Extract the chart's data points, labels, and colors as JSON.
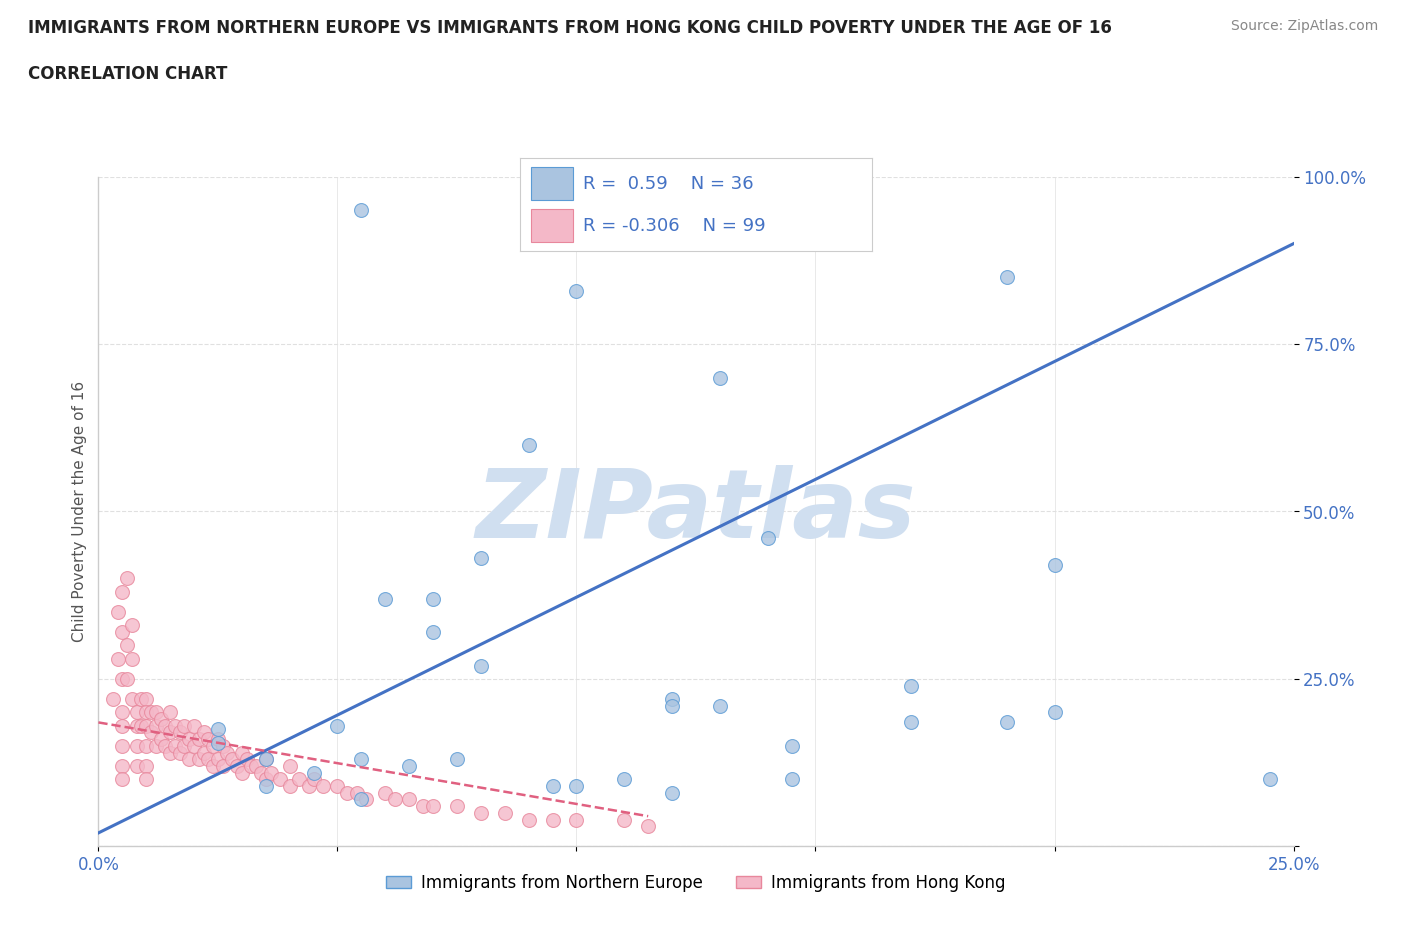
{
  "title": "IMMIGRANTS FROM NORTHERN EUROPE VS IMMIGRANTS FROM HONG KONG CHILD POVERTY UNDER THE AGE OF 16",
  "subtitle": "CORRELATION CHART",
  "source": "Source: ZipAtlas.com",
  "ylabel": "Child Poverty Under the Age of 16",
  "xlim": [
    0.0,
    0.25
  ],
  "ylim": [
    0.0,
    1.0
  ],
  "blue_R": 0.59,
  "blue_N": 36,
  "pink_R": -0.306,
  "pink_N": 99,
  "blue_color": "#aac4e0",
  "pink_color": "#f4b8c8",
  "blue_edge_color": "#5b9bd5",
  "pink_edge_color": "#e8879c",
  "blue_line_color": "#4472c4",
  "pink_line_color": "#e06080",
  "watermark": "ZIPatlas",
  "watermark_color": "#d0dff0",
  "legend_blue": "Immigrants from Northern Europe",
  "legend_pink": "Immigrants from Hong Kong",
  "blue_scatter_x": [
    0.055,
    0.1,
    0.09,
    0.13,
    0.14,
    0.08,
    0.07,
    0.12,
    0.06,
    0.17,
    0.12,
    0.13,
    0.17,
    0.19,
    0.2,
    0.145,
    0.025,
    0.025,
    0.035,
    0.05,
    0.065,
    0.075,
    0.055,
    0.045,
    0.035,
    0.1,
    0.095,
    0.11,
    0.2,
    0.19,
    0.245,
    0.12,
    0.145,
    0.07,
    0.08,
    0.055
  ],
  "blue_scatter_y": [
    0.95,
    0.83,
    0.6,
    0.7,
    0.46,
    0.43,
    0.37,
    0.22,
    0.37,
    0.24,
    0.21,
    0.21,
    0.185,
    0.185,
    0.2,
    0.15,
    0.175,
    0.155,
    0.13,
    0.18,
    0.12,
    0.13,
    0.13,
    0.11,
    0.09,
    0.09,
    0.09,
    0.1,
    0.42,
    0.85,
    0.1,
    0.08,
    0.1,
    0.32,
    0.27,
    0.07
  ],
  "pink_scatter_x": [
    0.003,
    0.004,
    0.005,
    0.005,
    0.005,
    0.005,
    0.005,
    0.005,
    0.005,
    0.006,
    0.006,
    0.007,
    0.007,
    0.008,
    0.008,
    0.008,
    0.008,
    0.009,
    0.009,
    0.01,
    0.01,
    0.01,
    0.01,
    0.01,
    0.01,
    0.011,
    0.011,
    0.012,
    0.012,
    0.012,
    0.013,
    0.013,
    0.014,
    0.014,
    0.015,
    0.015,
    0.015,
    0.016,
    0.016,
    0.017,
    0.017,
    0.018,
    0.018,
    0.019,
    0.019,
    0.02,
    0.02,
    0.021,
    0.021,
    0.022,
    0.022,
    0.023,
    0.023,
    0.024,
    0.024,
    0.025,
    0.025,
    0.026,
    0.026,
    0.027,
    0.028,
    0.029,
    0.03,
    0.03,
    0.031,
    0.032,
    0.033,
    0.034,
    0.035,
    0.035,
    0.036,
    0.038,
    0.04,
    0.04,
    0.042,
    0.044,
    0.045,
    0.047,
    0.05,
    0.052,
    0.054,
    0.056,
    0.06,
    0.062,
    0.065,
    0.068,
    0.07,
    0.075,
    0.08,
    0.085,
    0.09,
    0.095,
    0.1,
    0.11,
    0.115,
    0.004,
    0.005,
    0.006,
    0.007
  ],
  "pink_scatter_y": [
    0.22,
    0.28,
    0.32,
    0.25,
    0.2,
    0.18,
    0.15,
    0.12,
    0.1,
    0.3,
    0.25,
    0.28,
    0.22,
    0.2,
    0.18,
    0.15,
    0.12,
    0.22,
    0.18,
    0.22,
    0.2,
    0.18,
    0.15,
    0.12,
    0.1,
    0.2,
    0.17,
    0.2,
    0.18,
    0.15,
    0.19,
    0.16,
    0.18,
    0.15,
    0.2,
    0.17,
    0.14,
    0.18,
    0.15,
    0.17,
    0.14,
    0.18,
    0.15,
    0.16,
    0.13,
    0.18,
    0.15,
    0.16,
    0.13,
    0.17,
    0.14,
    0.16,
    0.13,
    0.15,
    0.12,
    0.16,
    0.13,
    0.15,
    0.12,
    0.14,
    0.13,
    0.12,
    0.14,
    0.11,
    0.13,
    0.12,
    0.12,
    0.11,
    0.13,
    0.1,
    0.11,
    0.1,
    0.12,
    0.09,
    0.1,
    0.09,
    0.1,
    0.09,
    0.09,
    0.08,
    0.08,
    0.07,
    0.08,
    0.07,
    0.07,
    0.06,
    0.06,
    0.06,
    0.05,
    0.05,
    0.04,
    0.04,
    0.04,
    0.04,
    0.03,
    0.35,
    0.38,
    0.4,
    0.33
  ],
  "blue_trend_x": [
    0.0,
    0.25
  ],
  "blue_trend_y": [
    0.02,
    0.9
  ],
  "pink_trend_x": [
    0.0,
    0.115
  ],
  "pink_trend_y": [
    0.185,
    0.045
  ],
  "background_color": "#ffffff",
  "grid_color": "#e0e0e0",
  "grid_style": "--",
  "title_color": "#222222",
  "axis_color": "#cccccc",
  "tick_color": "#4472c4",
  "marker_size": 100,
  "title_fontsize": 12,
  "subtitle_fontsize": 12,
  "source_fontsize": 10,
  "tick_fontsize": 12,
  "ylabel_fontsize": 11,
  "legend_fontsize": 12
}
